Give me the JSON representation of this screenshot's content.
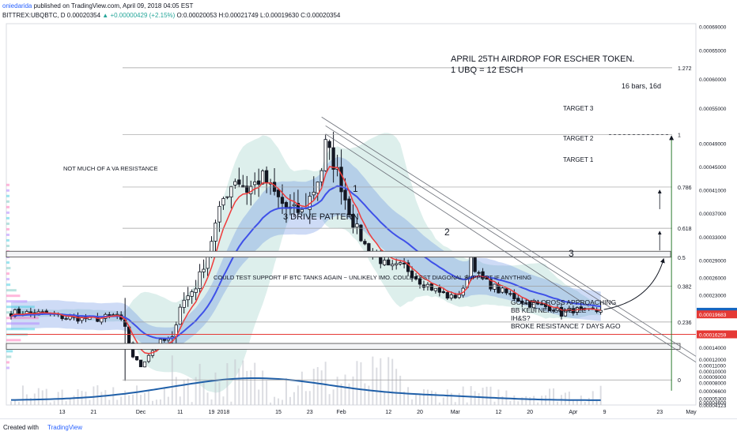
{
  "header": {
    "author": "oniedarida",
    "published": "published on TradingView.com, April 09, 2018 04:05 EST",
    "symbol": "BITTREX:UBQBTC, D",
    "last": "0.00020354",
    "change": "+0.00000429 (+2.15%)",
    "ohlc": "O:0.00020053 H:0.00021749 L:0.00019630 C:0.00020354"
  },
  "footer": {
    "created": "Created with",
    "brand": "TradingView"
  },
  "colors": {
    "upCandle": "#ffffff",
    "downCandle": "#131722",
    "fast": "#ef3b3b",
    "slow": "#3f51e8",
    "keltner": "#4e7fe0",
    "bollinger": "#62b8a8",
    "volume": "#1f5fa8",
    "resistance": "#e53935",
    "priceTag": "#1565c0",
    "ghost": "#2e7d32",
    "priceTagSecond": "#e53935",
    "profile": [
      "#b388ff",
      "#ff7bbd",
      "#80cbc4",
      "#4dd0e1"
    ]
  },
  "chart_data": {
    "type": "candlestick",
    "ylim": [
      4.15e-05,
      0.000695
    ],
    "y_ticks": [
      "0.00069000",
      "0.00065000",
      "0.00060000",
      "0.00055000",
      "0.00049000",
      "0.00045000",
      "0.00041000",
      "0.00037000",
      "0.00033000",
      "0.00029000",
      "0.00026000",
      "0.00023000",
      "0.00020354",
      "0.00020127",
      "0.00019683",
      "0.00016259",
      "0.00014000",
      "0.00012000",
      "0.00011000",
      "0.00010000",
      "0.00009000",
      "0.00008000",
      "0.00006600",
      "0.00005300",
      "0.00004600",
      "0.00004123"
    ],
    "x_ticks": [
      "13",
      "21",
      "Dec",
      "11",
      "19",
      "2018",
      "15",
      "23",
      "Feb",
      "12",
      "20",
      "Mar",
      "12",
      "20",
      "Apr",
      "9",
      "23",
      "May"
    ],
    "price_labels": {
      "last": "0.00020354",
      "ma1": "0.00020127",
      "ma2": "0.00019683",
      "resistance": "0.00016259"
    },
    "candle_sample": [
      {
        "d": "Nov 13",
        "o": 0.0002,
        "h": 0.000215,
        "l": 0.000188,
        "c": 0.000195
      },
      {
        "d": "Nov 21",
        "o": 0.000182,
        "h": 0.000198,
        "l": 0.000175,
        "c": 0.000188
      },
      {
        "d": "Dec 1",
        "o": 0.00018,
        "h": 0.000225,
        "l": 0.00017,
        "c": 0.000208
      },
      {
        "d": "Dec 8",
        "o": 0.00017,
        "h": 0.00019,
        "l": 8.3e-05,
        "c": 0.000105
      },
      {
        "d": "Dec 19",
        "o": 0.00015,
        "h": 0.000225,
        "l": 0.000145,
        "c": 0.000215
      },
      {
        "d": "Jan 1",
        "o": 0.00036,
        "h": 0.00045,
        "l": 0.00031,
        "c": 0.00042
      },
      {
        "d": "Jan 23",
        "o": 0.00038,
        "h": 0.00042,
        "l": 0.00034,
        "c": 0.0004
      },
      {
        "d": "Jan 27",
        "o": 0.00042,
        "h": 0.000505,
        "l": 0.000405,
        "c": 0.00049
      },
      {
        "d": "Feb 2",
        "o": 0.00038,
        "h": 0.0004,
        "l": 0.00028,
        "c": 0.00031
      },
      {
        "d": "Mar 1",
        "o": 0.000235,
        "h": 0.000245,
        "l": 0.000215,
        "c": 0.000228
      },
      {
        "d": "Mar 7",
        "o": 0.000295,
        "h": 0.00032,
        "l": 0.000255,
        "c": 0.00026
      },
      {
        "d": "Mar 26",
        "o": 0.000214,
        "h": 0.000222,
        "l": 0.000198,
        "c": 0.0002
      },
      {
        "d": "Apr 9",
        "o": 0.00020053,
        "h": 0.00021749,
        "l": 0.0001963,
        "c": 0.00020354
      }
    ],
    "fib_levels": [
      "1.272",
      "1",
      "0.786",
      "0.618",
      "0.5",
      "0.382",
      "0.236",
      "0"
    ],
    "annotations": [
      "APRIL 25TH AIRDROP FOR ESCHER TOKEN.",
      "1 UBQ = 12 ESCH",
      "16 bars, 16d",
      "TARGET 3",
      "TARGET 2",
      "TARGET 1",
      "NOT MUCH OF A VA RESISTANCE",
      "1",
      "2",
      "3",
      "3 DRIVE PATTERN",
      "COULD TEST SUPPORT IF BTC TANKS AGAIN ~ UNLIKELY IMO.  COULD TEST DIAGONAL SUPPORT IF ANYTHING",
      "GOLDEN CROSS APPROACHING",
      "BB KELTNER SQUEEZE",
      "IH&S?",
      "BROKE RESISTANCE 7 DAYS AGO"
    ]
  }
}
